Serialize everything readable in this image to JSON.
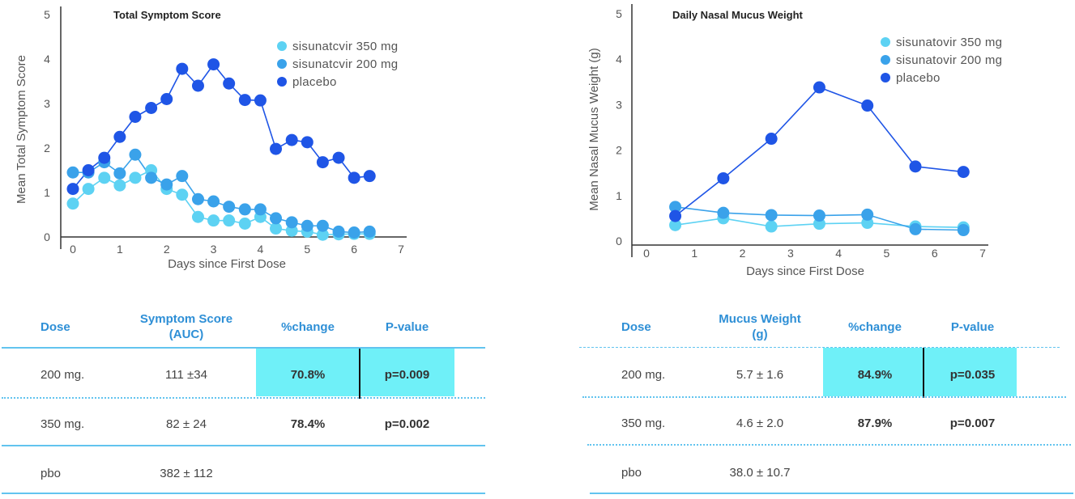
{
  "chart_data": [
    {
      "type": "line",
      "title": "Total Symptom Score",
      "xlabel": "Days since First Dose",
      "ylabel": "Mean Total Symptom Score",
      "xlim": [
        0,
        7
      ],
      "ylim": [
        0,
        5
      ],
      "xticks": [
        "0",
        "1",
        "2",
        "3",
        "4",
        "5",
        "6",
        "7"
      ],
      "yticks": [
        "0",
        "1",
        "2",
        "3",
        "4",
        "5"
      ],
      "legend_position": "top-right",
      "series": [
        {
          "name": "sisunatcvir 350 mg",
          "color": "#5dd2f3",
          "x": [
            0,
            0.33,
            0.67,
            1,
            1.33,
            1.67,
            2,
            2.33,
            2.67,
            3,
            3.33,
            3.67,
            4,
            4.33,
            4.67,
            5,
            5.33,
            5.67,
            6,
            6.33
          ],
          "y": [
            0.75,
            1.08,
            1.33,
            1.16,
            1.33,
            1.5,
            1.08,
            0.95,
            0.45,
            0.37,
            0.37,
            0.3,
            0.45,
            0.19,
            0.14,
            0.12,
            0.05,
            0.06,
            0.07,
            0.07
          ]
        },
        {
          "name": "sisunatcvir 200 mg",
          "color": "#3aa2ea",
          "x": [
            0,
            0.33,
            0.67,
            1,
            1.33,
            1.67,
            2,
            2.33,
            2.67,
            3,
            3.33,
            3.67,
            4,
            4.33,
            4.67,
            5,
            5.33,
            5.67,
            6,
            6.33
          ],
          "y": [
            1.45,
            1.45,
            1.68,
            1.43,
            1.85,
            1.33,
            1.18,
            1.37,
            0.85,
            0.8,
            0.68,
            0.62,
            0.62,
            0.42,
            0.33,
            0.25,
            0.25,
            0.12,
            0.1,
            0.12
          ]
        },
        {
          "name": "placebo",
          "color": "#1f55e6",
          "x": [
            0,
            0.33,
            0.67,
            1,
            1.33,
            1.67,
            2,
            2.33,
            2.67,
            3,
            3.33,
            3.67,
            4,
            4.33,
            4.67,
            5,
            5.33,
            5.67,
            6,
            6.33
          ],
          "y": [
            1.08,
            1.5,
            1.78,
            2.25,
            2.7,
            2.9,
            3.1,
            3.78,
            3.4,
            3.88,
            3.45,
            3.08,
            3.07,
            1.98,
            2.18,
            2.13,
            1.68,
            1.78,
            1.33,
            1.37
          ]
        }
      ]
    },
    {
      "type": "line",
      "title": "Daily Nasal Mucus Weight",
      "xlabel": "Days since First Dose",
      "ylabel": "Mean Nasal Mucus Weight (g)",
      "xlim": [
        0,
        7
      ],
      "ylim": [
        0,
        5
      ],
      "xticks": [
        "0",
        "1",
        "2",
        "3",
        "4",
        "5",
        "6",
        "7"
      ],
      "yticks": [
        "0",
        "1",
        "2",
        "3",
        "4",
        "5"
      ],
      "legend_position": "top-right",
      "series": [
        {
          "name": "sisunatovir 350 mg",
          "color": "#5dd2f3",
          "x": [
            0.6,
            1.6,
            2.6,
            3.6,
            4.6,
            5.6,
            6.6
          ],
          "y": [
            0.35,
            0.5,
            0.32,
            0.38,
            0.4,
            0.32,
            0.3
          ]
        },
        {
          "name": "sisunatovir 200 mg",
          "color": "#3aa2ea",
          "x": [
            0.6,
            1.6,
            2.6,
            3.6,
            4.6,
            5.6,
            6.6
          ],
          "y": [
            0.75,
            0.62,
            0.57,
            0.56,
            0.58,
            0.26,
            0.24
          ]
        },
        {
          "name": "placebo",
          "color": "#1f55e6",
          "x": [
            0.6,
            1.6,
            2.6,
            3.6,
            4.6,
            5.6,
            6.6
          ],
          "y": [
            0.55,
            1.38,
            2.25,
            3.38,
            2.98,
            1.64,
            1.52
          ]
        }
      ]
    }
  ],
  "tables": [
    {
      "headers": {
        "dose": "Dose",
        "metric_l1": "Symptom Score",
        "metric_l2": "(AUC)",
        "change": "%change",
        "pvalue": "P-value"
      },
      "rows": [
        {
          "dose": "200 mg.",
          "metric": "111 ±34",
          "change": "70.8%",
          "pvalue": "p=0.009"
        },
        {
          "dose": "350 mg.",
          "metric": "82 ± 24",
          "change": "78.4%",
          "pvalue": "p=0.002"
        },
        {
          "dose": "pbo",
          "metric": "382 ± 112",
          "change": "",
          "pvalue": ""
        }
      ]
    },
    {
      "headers": {
        "dose": "Dose",
        "metric_l1": "Mucus Weight",
        "metric_l2": "(g)",
        "change": "%change",
        "pvalue": "P-value"
      },
      "rows": [
        {
          "dose": "200 mg.",
          "metric": "5.7 ± 1.6",
          "change": "84.9%",
          "pvalue": "p=0.035"
        },
        {
          "dose": "350 mg.",
          "metric": "4.6 ± 2.0",
          "change": "87.9%",
          "pvalue": "p=0.007"
        },
        {
          "dose": "pbo",
          "metric": "38.0 ± 10.7",
          "change": "",
          "pvalue": ""
        }
      ]
    }
  ]
}
